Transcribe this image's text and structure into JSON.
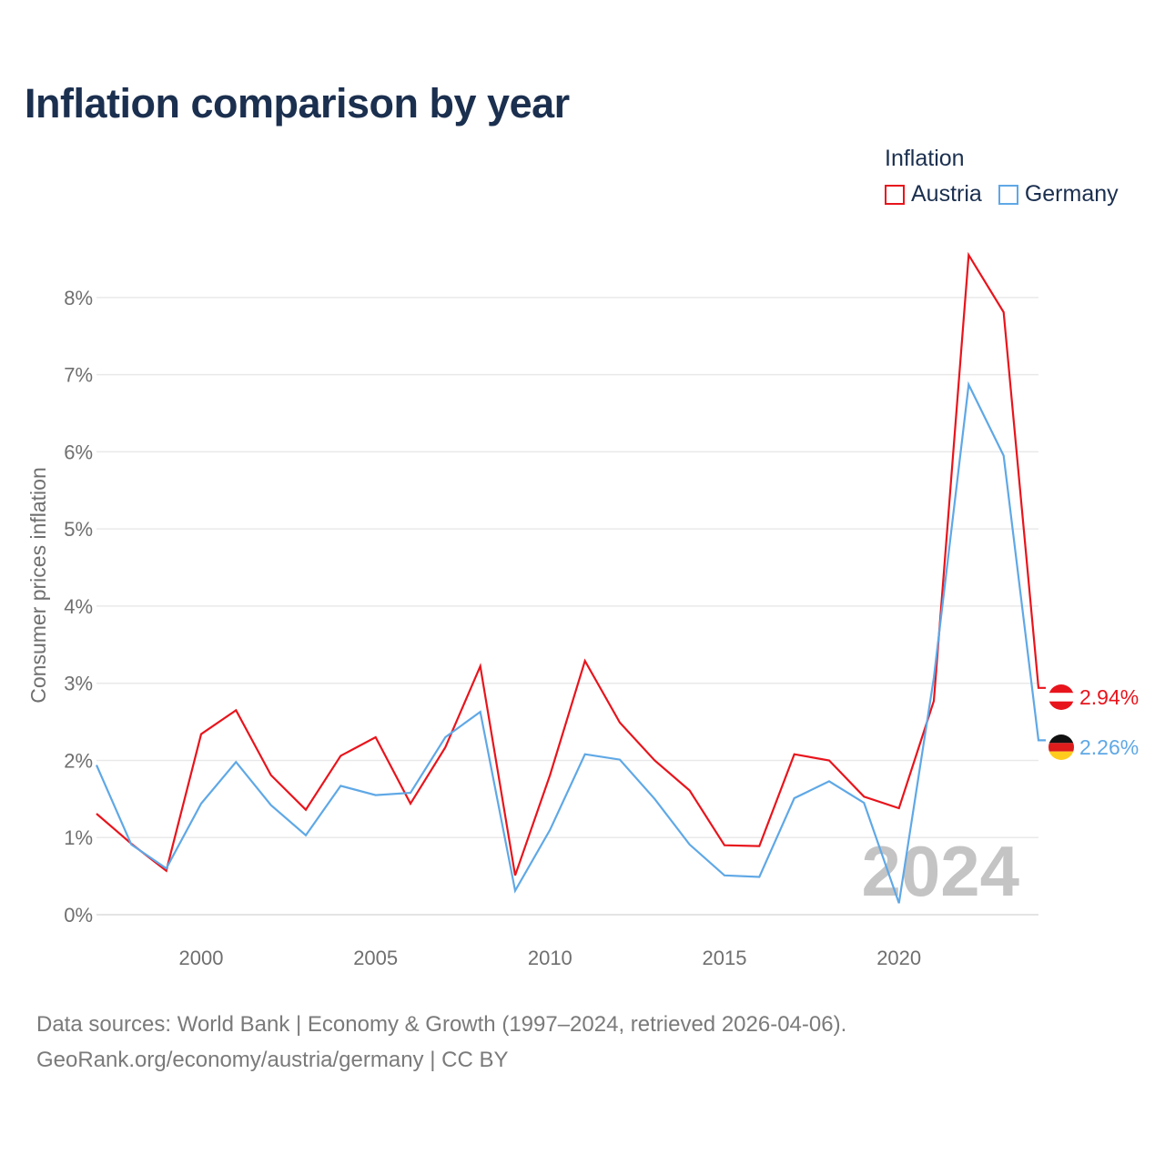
{
  "title": "Inflation comparison by year",
  "legend": {
    "title": "Inflation",
    "items": [
      {
        "label": "Austria",
        "color": "#e8141c"
      },
      {
        "label": "Germany",
        "color": "#5fa8e6"
      }
    ]
  },
  "source": {
    "line1": "Data sources: World Bank | Economy & Growth (1997–2024, retrieved 2026-04-06).",
    "line2": "GeoRank.org/economy/austria/germany | CC BY"
  },
  "chart_data": {
    "type": "line",
    "title": "Inflation comparison by year",
    "ylabel": "Consumer prices inflation",
    "xlabel": "",
    "xlim": [
      1997,
      2024
    ],
    "ylim": [
      0,
      8.6
    ],
    "x_ticks": [
      2000,
      2005,
      2010,
      2015,
      2020
    ],
    "y_ticks": [
      0,
      1,
      2,
      3,
      4,
      5,
      6,
      7,
      8
    ],
    "y_tick_labels": [
      "0%",
      "1%",
      "2%",
      "3%",
      "4%",
      "5%",
      "6%",
      "7%",
      "8%"
    ],
    "year_watermark": "2024",
    "x": [
      1997,
      1998,
      1999,
      2000,
      2001,
      2002,
      2003,
      2004,
      2005,
      2006,
      2007,
      2008,
      2009,
      2010,
      2011,
      2012,
      2013,
      2014,
      2015,
      2016,
      2017,
      2018,
      2019,
      2020,
      2021,
      2022,
      2023,
      2024
    ],
    "series": [
      {
        "name": "Austria",
        "color": "#e8141c",
        "end_label": "2.94%",
        "values": [
          1.31,
          0.92,
          0.57,
          2.34,
          2.65,
          1.81,
          1.36,
          2.06,
          2.3,
          1.44,
          2.17,
          3.22,
          0.51,
          1.81,
          3.29,
          2.49,
          2.0,
          1.61,
          0.9,
          0.89,
          2.08,
          2.0,
          1.53,
          1.38,
          2.77,
          8.55,
          7.81,
          2.94
        ]
      },
      {
        "name": "Germany",
        "color": "#5fa8e6",
        "end_label": "2.26%",
        "values": [
          1.94,
          0.91,
          0.6,
          1.44,
          1.98,
          1.42,
          1.03,
          1.67,
          1.55,
          1.58,
          2.3,
          2.63,
          0.31,
          1.1,
          2.08,
          2.01,
          1.5,
          0.91,
          0.51,
          0.49,
          1.51,
          1.73,
          1.45,
          0.15,
          3.07,
          6.87,
          5.95,
          2.26
        ]
      }
    ]
  }
}
